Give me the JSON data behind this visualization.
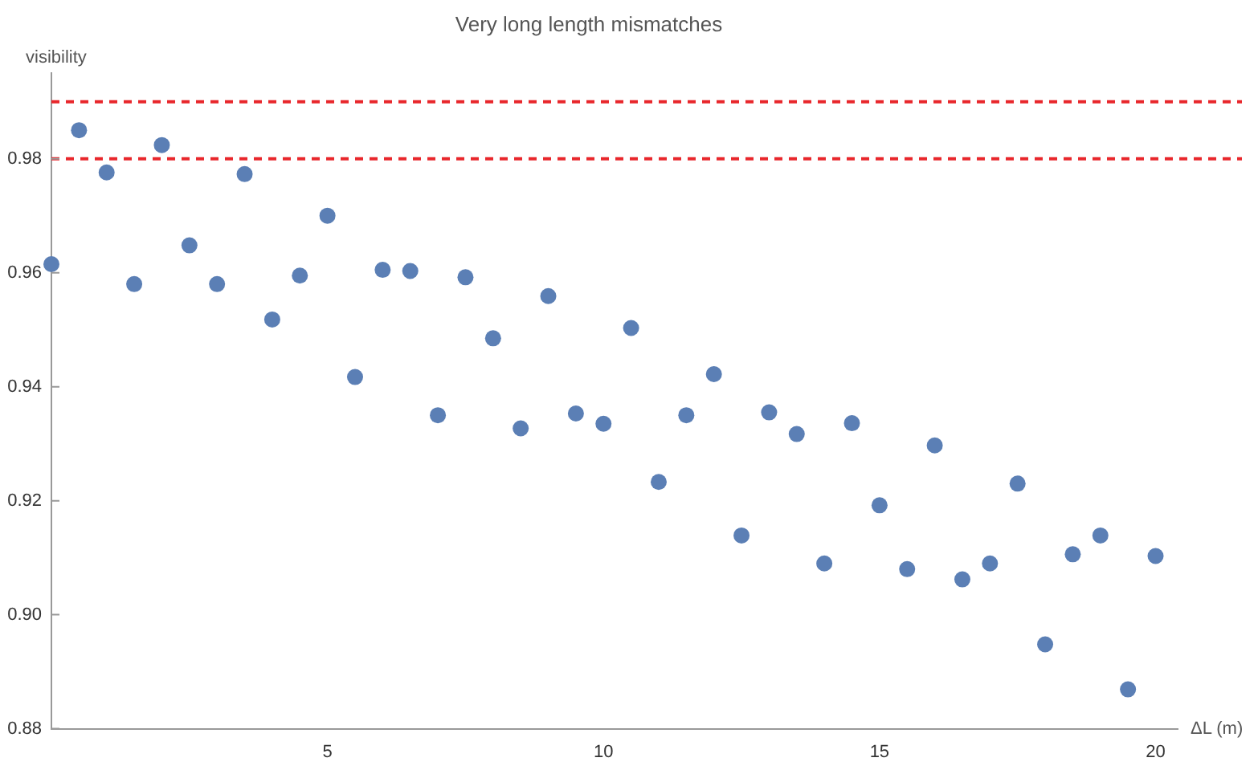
{
  "chart_data": {
    "type": "scatter",
    "title": "Very long length mismatches",
    "xlabel": "ΔL (m)",
    "ylabel": "visibility",
    "x": [
      0,
      0.5,
      1,
      1.5,
      2,
      2.5,
      3,
      3.5,
      4,
      4.5,
      5,
      5.5,
      6,
      6.5,
      7,
      7.5,
      8,
      8.5,
      9,
      9.5,
      10,
      10.5,
      11,
      11.5,
      12,
      12.5,
      13,
      13.5,
      14,
      14.5,
      15,
      15.5,
      16,
      16.5,
      17,
      17.5,
      18,
      18.5,
      19,
      19.5,
      20
    ],
    "series": [
      {
        "color": "#5b7fb5",
        "values": [
          0.9615,
          0.985,
          0.9776,
          0.958,
          0.9824,
          0.9648,
          0.958,
          0.9773,
          0.9518,
          0.9595,
          0.97,
          0.9417,
          0.9605,
          0.9603,
          0.935,
          0.9592,
          0.9485,
          0.9327,
          0.9559,
          0.9353,
          0.9335,
          0.9503,
          0.9233,
          0.935,
          0.9422,
          0.9139,
          0.9355,
          0.9317,
          0.909,
          0.9336,
          0.9192,
          0.908,
          0.9297,
          0.9062,
          0.909,
          0.923,
          0.8948,
          0.9106,
          0.9139,
          0.8869,
          0.9103
        ]
      }
    ],
    "xlim": [
      0,
      20.4
    ],
    "xticks": [
      5,
      10,
      15,
      20
    ],
    "ylim": [
      0.88,
      0.995
    ],
    "yticks": [
      {
        "value": 0.88,
        "label": "0.88"
      },
      {
        "value": 0.9,
        "label": "0.90"
      },
      {
        "value": 0.92,
        "label": "0.92"
      },
      {
        "value": 0.94,
        "label": "0.94"
      },
      {
        "value": 0.96,
        "label": "0.96"
      },
      {
        "value": 0.98,
        "label": "0.98"
      }
    ],
    "ref_lines": [
      {
        "axis": "y",
        "value": 0.99,
        "color": "#e8262b",
        "line_style": "dashed"
      },
      {
        "axis": "y",
        "value": 0.98,
        "color": "#e8262b",
        "line_style": "dashed"
      }
    ],
    "marker": "circle",
    "grid": false,
    "legend": false
  }
}
